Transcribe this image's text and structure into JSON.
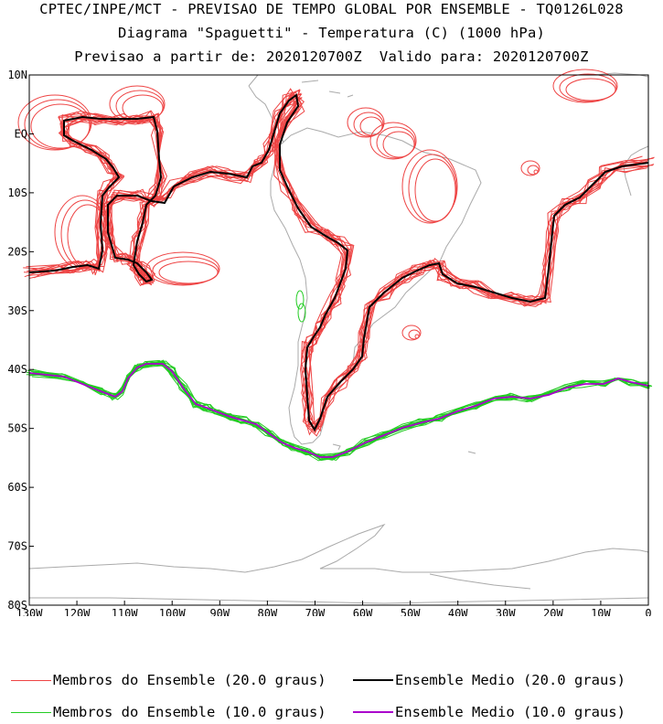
{
  "header": {
    "line1": "CPTEC/INPE/MCT - PREVISAO DE TEMPO GLOBAL POR ENSEMBLE - TQ0126L028",
    "line2": "Diagrama \"Spaguetti\" - Temperatura (C) (1000 hPa)",
    "line3": "Previsao a partir de: 2020120700Z  Valido para: 2020120700Z"
  },
  "map": {
    "lat_labels": [
      "10N",
      "EQ",
      "10S",
      "20S",
      "30S",
      "40S",
      "50S",
      "60S",
      "70S",
      "80S"
    ],
    "lon_labels": [
      "130W",
      "120W",
      "110W",
      "100W",
      "90W",
      "80W",
      "70W",
      "60W",
      "50W",
      "40W",
      "30W",
      "20W",
      "10W",
      "0"
    ],
    "lon_range": [
      -130,
      0
    ],
    "lat_range": [
      -80,
      10
    ],
    "colors": {
      "members_20": "#ee4444",
      "mean_20": "#000000",
      "members_10": "#22cc22",
      "mean_10": "#aa00cc",
      "coastline": "#aaaaaa"
    }
  },
  "legend": {
    "members_20": "Membros do Ensemble (20.0 graus)",
    "mean_20": "Ensemble Medio (20.0 graus)",
    "members_10": "Membros do Ensemble (10.0 graus)",
    "mean_10": "Ensemble Medio (10.0 graus)"
  }
}
